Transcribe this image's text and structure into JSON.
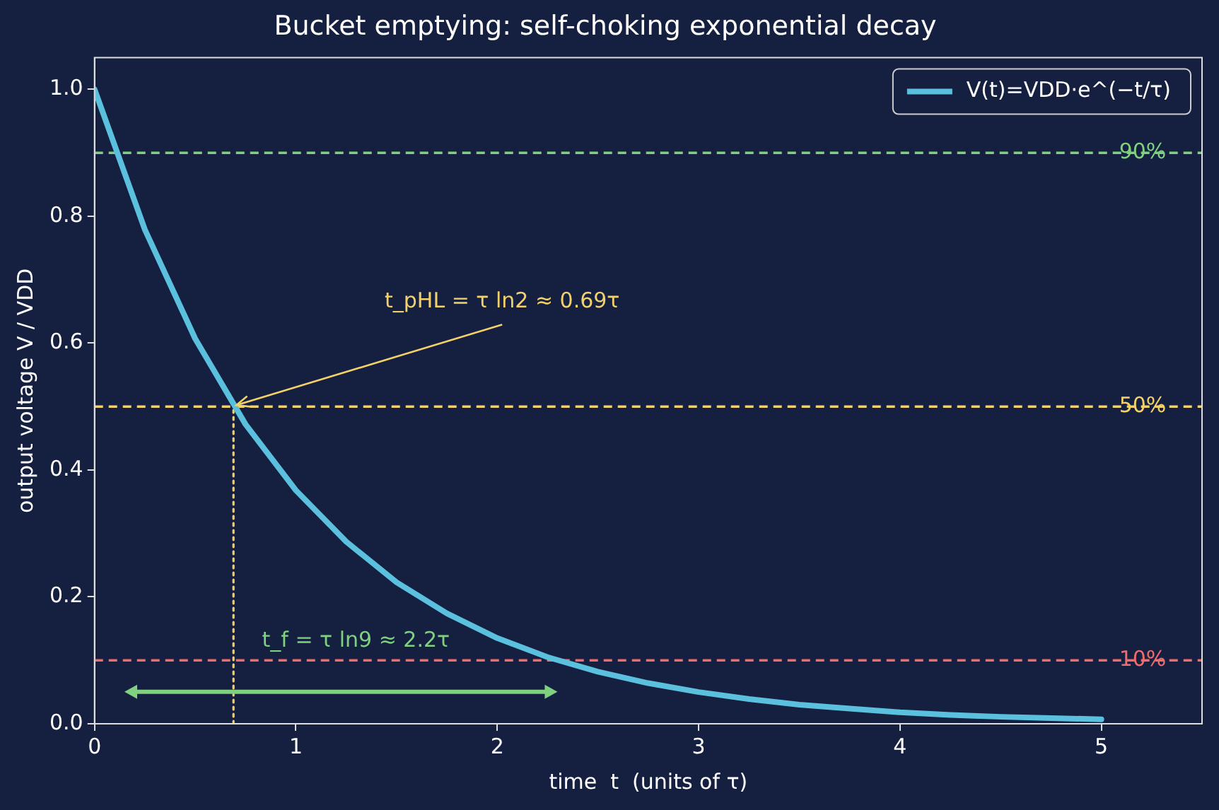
{
  "chart_data": {
    "type": "line",
    "title": "Bucket emptying: self-choking exponential decay",
    "xlabel": "time  t  (units of τ)",
    "ylabel": "output voltage V / VDD",
    "xlim": [
      0,
      5.5
    ],
    "xticks": [
      0,
      1,
      2,
      3,
      4,
      5
    ],
    "ylim": [
      0,
      1.05
    ],
    "yticks": [
      {
        "value": 0,
        "label": "0.0"
      },
      {
        "value": 0.2,
        "label": "0.2"
      },
      {
        "value": 0.4,
        "label": "0.4"
      },
      {
        "value": 0.6,
        "label": "0.6"
      },
      {
        "value": 0.8,
        "label": "0.8"
      },
      {
        "value": 1,
        "label": "1.0"
      }
    ],
    "grid": false,
    "legend": "top right",
    "marker": "none",
    "line_style": "solid",
    "series": [
      {
        "name": "V(t)=VDD·e^(−t/τ)",
        "color": "#5bc0de",
        "x": [
          0,
          0.25,
          0.5,
          0.75,
          1,
          1.25,
          1.5,
          1.75,
          2,
          2.25,
          2.5,
          2.75,
          3,
          3.25,
          3.5,
          3.75,
          4,
          4.25,
          4.5,
          4.75,
          5
        ],
        "values": [
          1,
          0.779,
          0.607,
          0.472,
          0.368,
          0.287,
          0.223,
          0.174,
          0.135,
          0.105,
          0.082,
          0.064,
          0.05,
          0.039,
          0.03,
          0.024,
          0.018,
          0.014,
          0.011,
          0.009,
          0.007
        ]
      },
      {
        "type": "line",
        "color": "#f2d16b",
        "line_style": "dotted",
        "x": [
          0.69,
          0.69
        ],
        "values": [
          0,
          0.5
        ]
      }
    ],
    "ref_lines": [
      {
        "axis": "y",
        "value": 0.9,
        "label": "90%",
        "color": "#7fd17f",
        "line_style": "dashed"
      },
      {
        "axis": "y",
        "value": 0.5,
        "label": "50%",
        "color": "#f2d16b",
        "line_style": "dashed"
      },
      {
        "axis": "y",
        "value": 0.1,
        "label": "10%",
        "color": "#f06b6b",
        "line_style": "dashed"
      }
    ],
    "annotations": [
      {
        "text": "t_pHL = τ ln2 ≈ 0.69τ",
        "x": 0.69,
        "y": 0.5
      },
      "t_f = τ ln9 ≈ 2.2τ"
    ]
  }
}
